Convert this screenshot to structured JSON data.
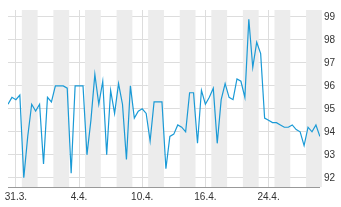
{
  "chart_data": {
    "type": "line",
    "categories": [
      null,
      null,
      "31.3.",
      null,
      null,
      null,
      null,
      null,
      null,
      null,
      null,
      null,
      null,
      null,
      null,
      null,
      null,
      null,
      "4.4.",
      null,
      null,
      null,
      null,
      null,
      null,
      null,
      null,
      null,
      null,
      null,
      null,
      null,
      null,
      null,
      "10.4.",
      null,
      null,
      null,
      null,
      null,
      null,
      null,
      null,
      null,
      null,
      null,
      null,
      null,
      null,
      null,
      "16.4.",
      null,
      null,
      null,
      null,
      null,
      null,
      null,
      null,
      null,
      null,
      null,
      null,
      null,
      null,
      null,
      "24.4.",
      null,
      null,
      null,
      null,
      null,
      null,
      null,
      null,
      null,
      null,
      null,
      null,
      null
    ],
    "values": [
      95.2,
      95.5,
      95.4,
      95.6,
      92.0,
      93.8,
      95.2,
      94.9,
      95.2,
      92.6,
      95.5,
      95.3,
      96.0,
      96.0,
      96.0,
      95.9,
      92.2,
      96.0,
      96.0,
      96.0,
      93.0,
      94.5,
      96.5,
      95.2,
      96.2,
      93.0,
      95.8,
      94.8,
      96.1,
      95.2,
      92.8,
      96.0,
      94.6,
      94.9,
      95.0,
      94.8,
      93.6,
      95.3,
      95.3,
      95.3,
      92.4,
      93.8,
      93.9,
      94.3,
      94.2,
      94.0,
      95.7,
      95.7,
      93.5,
      95.8,
      95.2,
      95.5,
      95.9,
      93.5,
      95.4,
      96.1,
      95.5,
      95.4,
      96.3,
      96.2,
      95.5,
      98.9,
      96.8,
      97.9,
      97.4,
      94.6,
      94.5,
      94.4,
      94.4,
      94.3,
      94.2,
      94.2,
      94.3,
      94.1,
      94.0,
      93.4,
      94.2,
      94.0,
      94.3,
      93.8
    ],
    "color": "#1a9ad6",
    "ylim": [
      91.6,
      99.3
    ],
    "yticks": [
      92,
      93,
      94,
      95,
      96,
      97,
      98,
      99
    ],
    "grid": true
  }
}
